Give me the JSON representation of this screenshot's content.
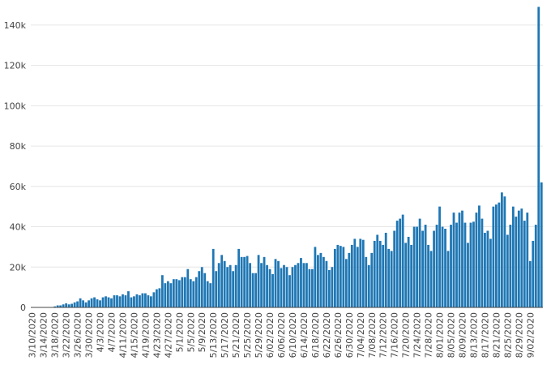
{
  "chart_data": {
    "type": "bar",
    "grid": true,
    "legend": "none",
    "color": "#1f77b4",
    "ylim": [
      0,
      150000
    ],
    "y_ticks": [
      {
        "value": 0,
        "label": "0"
      },
      {
        "value": 20000,
        "label": "20k"
      },
      {
        "value": 40000,
        "label": "40k"
      },
      {
        "value": 60000,
        "label": "60k"
      },
      {
        "value": 80000,
        "label": "80k"
      },
      {
        "value": 100000,
        "label": "100k"
      },
      {
        "value": 120000,
        "label": "120k"
      },
      {
        "value": 140000,
        "label": "140k"
      }
    ],
    "x_ticks": [
      "3/10/2020",
      "3/14/2020",
      "3/18/2020",
      "3/22/2020",
      "3/26/2020",
      "3/30/2020",
      "4/3/2020",
      "4/7/2020",
      "4/11/2020",
      "4/15/2020",
      "4/19/2020",
      "4/23/2020",
      "4/27/2020",
      "5/1/2020",
      "5/5/2020",
      "5/9/2020",
      "5/13/2020",
      "5/17/2020",
      "5/21/2020",
      "5/25/2020",
      "5/29/2020",
      "6/02/2020",
      "6/06/2020",
      "6/10/2020",
      "6/14/2020",
      "6/18/2020",
      "6/22/2020",
      "6/26/2020",
      "6/30/2020",
      "7/04/2020",
      "7/08/2020",
      "7/12/2020",
      "7/16/2020",
      "7/20/2020",
      "7/24/2020",
      "7/28/2020",
      "8/01/2020",
      "8/05/2020",
      "8/09/2020",
      "8/13/2020",
      "8/17/2020",
      "8/21/2020",
      "8/25/2020",
      "8/29/2020",
      "9/02/2020"
    ],
    "x_start": "3/10/2020",
    "values": [
      100,
      100,
      100,
      100,
      100,
      100,
      100,
      200,
      500,
      1000,
      1000,
      1500,
      2000,
      1500,
      1800,
      2500,
      3000,
      4500,
      3500,
      2500,
      3500,
      4500,
      5000,
      4000,
      3500,
      5000,
      5500,
      5000,
      4500,
      6000,
      6000,
      5500,
      6500,
      6000,
      8000,
      5000,
      5500,
      6500,
      6000,
      7000,
      7000,
      6000,
      5500,
      7500,
      9000,
      9500,
      16000,
      12000,
      13000,
      12000,
      14000,
      14000,
      13500,
      15000,
      15000,
      19000,
      14000,
      13000,
      15000,
      18000,
      20000,
      17000,
      13000,
      12000,
      29000,
      18000,
      22000,
      26000,
      23000,
      20000,
      21000,
      18000,
      21000,
      29000,
      25000,
      25000,
      25500,
      22000,
      17000,
      17000,
      26000,
      22000,
      25000,
      21000,
      19000,
      16500,
      24000,
      23000,
      19500,
      21000,
      20000,
      16000,
      20000,
      21000,
      22000,
      24500,
      22000,
      22000,
      19000,
      19000,
      30000,
      26000,
      27000,
      25000,
      23000,
      18500,
      20000,
      29000,
      31000,
      30500,
      30000,
      24000,
      27000,
      31000,
      34000,
      30000,
      34000,
      33500,
      25000,
      21000,
      27000,
      33000,
      36000,
      33000,
      31000,
      37000,
      29000,
      28000,
      38000,
      43000,
      44000,
      46000,
      32000,
      35000,
      31000,
      40000,
      40000,
      44000,
      38000,
      41000,
      31000,
      28000,
      38000,
      41000,
      50000,
      40000,
      39000,
      28000,
      41000,
      47000,
      42000,
      47000,
      48000,
      42000,
      32000,
      42000,
      42500,
      47000,
      50500,
      44000,
      37000,
      38000,
      34000,
      50000,
      51000,
      52000,
      57000,
      55000,
      36000,
      41000,
      50000,
      45000,
      48000,
      49000,
      43000,
      47000,
      23000,
      33000,
      41000,
      149000,
      62000
    ]
  }
}
